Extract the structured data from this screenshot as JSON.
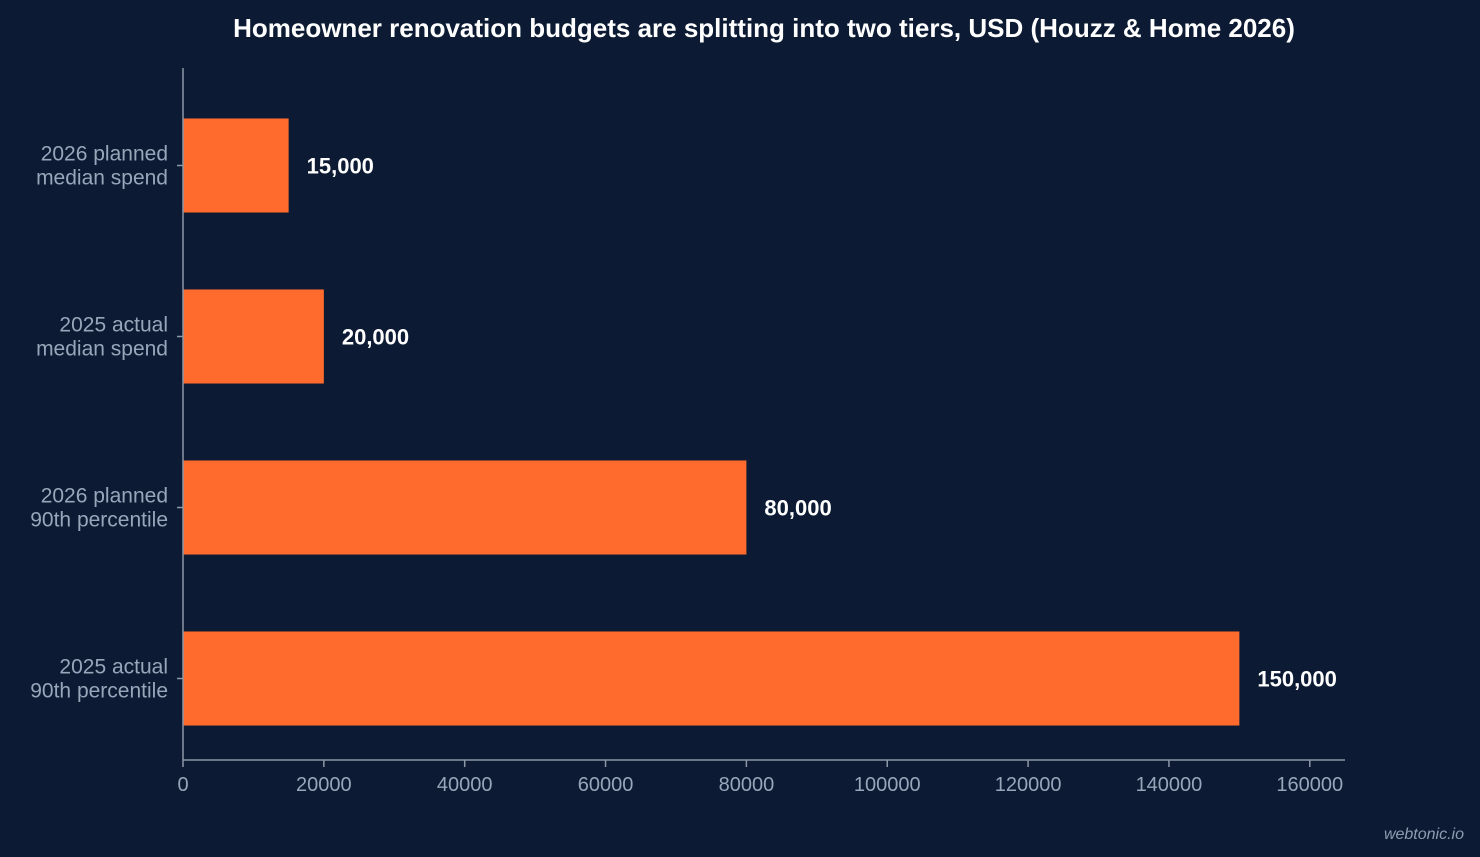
{
  "chart_data": {
    "type": "bar",
    "orientation": "horizontal",
    "title": "Homeowner renovation budgets are splitting into two tiers, USD (Houzz & Home 2026)",
    "categories": [
      [
        "2026 planned",
        "median spend"
      ],
      [
        "2025 actual",
        "median spend"
      ],
      [
        "2026 planned",
        "90th percentile"
      ],
      [
        "2025 actual",
        "90th percentile"
      ]
    ],
    "values": [
      15000,
      20000,
      80000,
      150000
    ],
    "value_labels": [
      "15,000",
      "20,000",
      "80,000",
      "150,000"
    ],
    "xlim": [
      0,
      165000
    ],
    "xticks": [
      0,
      20000,
      40000,
      60000,
      80000,
      100000,
      120000,
      140000,
      160000
    ],
    "xtick_labels": [
      "0",
      "20000",
      "40000",
      "60000",
      "80000",
      "100000",
      "120000",
      "140000",
      "160000"
    ],
    "xlabel": "",
    "ylabel": "",
    "grid": false,
    "bar_color": "#ff6b2c",
    "background_color": "#0c1b33"
  },
  "watermark": "webtonic.io"
}
